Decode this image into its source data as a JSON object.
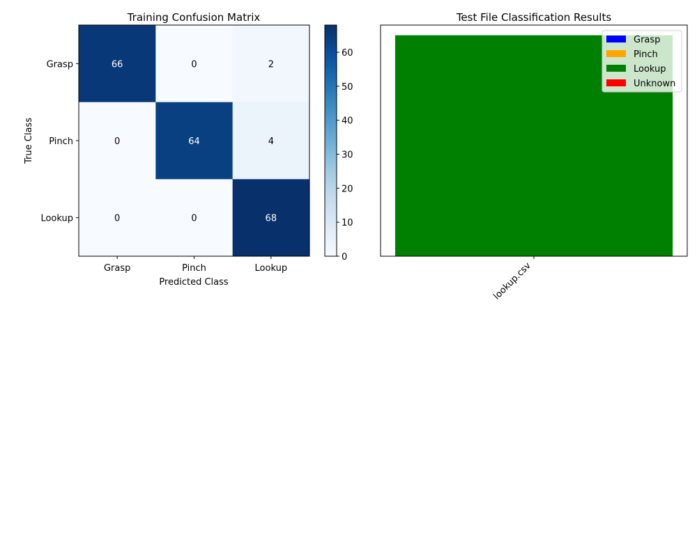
{
  "chart_data": [
    {
      "type": "heatmap",
      "title": "Training Confusion Matrix",
      "xlabel": "Predicted Class",
      "ylabel": "True Class",
      "x_categories": [
        "Grasp",
        "Pinch",
        "Lookup"
      ],
      "y_categories": [
        "Grasp",
        "Pinch",
        "Lookup"
      ],
      "values": [
        [
          66,
          0,
          2
        ],
        [
          0,
          64,
          4
        ],
        [
          0,
          0,
          68
        ]
      ],
      "colorscale": "Blues",
      "colorbar": {
        "range": [
          0,
          68
        ],
        "ticks": [
          "0",
          "10",
          "20",
          "30",
          "40",
          "50",
          "60"
        ]
      }
    },
    {
      "type": "bar",
      "stacked": true,
      "title": "Test File Classification Results",
      "categories": [
        "lookup.csv"
      ],
      "series": [
        {
          "name": "Grasp",
          "color": "#0000ff",
          "values": [
            0
          ]
        },
        {
          "name": "Pinch",
          "color": "#ffa500",
          "values": [
            0
          ]
        },
        {
          "name": "Lookup",
          "color": "#008000",
          "values": [
            65
          ]
        },
        {
          "name": "Unknown",
          "color": "#ff0000",
          "values": [
            0
          ]
        }
      ],
      "ylim": [
        0,
        68
      ],
      "yticks": false,
      "legend_position": "top-right"
    }
  ]
}
